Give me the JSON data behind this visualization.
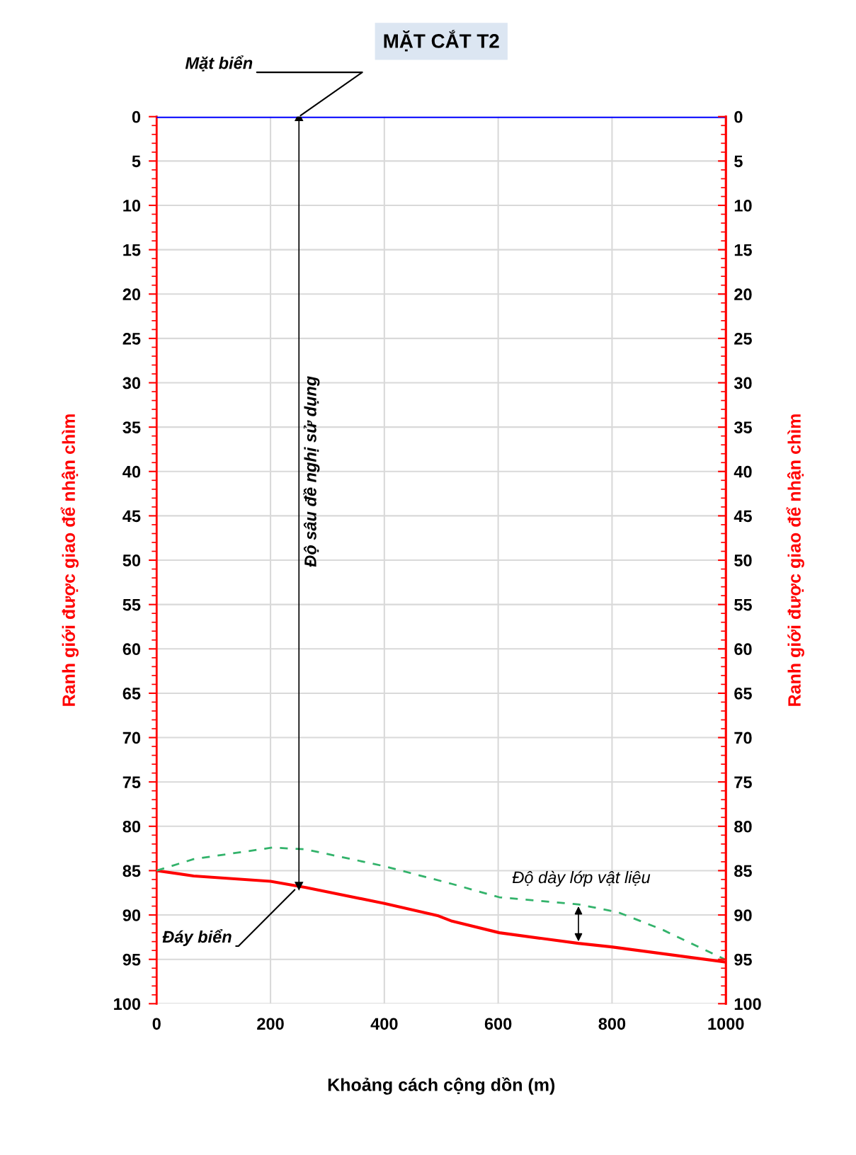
{
  "chart_data": {
    "type": "line",
    "title": "MẶT CẮT T2",
    "xlabel": "Khoảng cách cộng dồn (m)",
    "ylabel": "Ranh giới được giao để nhận chìm",
    "y2label": "Ranh giới được giao để nhận chìm",
    "series": [
      {
        "color": "#0000ff",
        "x": [
          0,
          1000
        ],
        "values": [
          0,
          0
        ],
        "line_style": "solid"
      },
      {
        "color": "#ff0000",
        "x": [
          0,
          65,
          200,
          262,
          400,
          495,
          519,
          602,
          741,
          799,
          998
        ],
        "values": [
          85,
          85.6,
          86.2,
          86.9,
          88.7,
          90.1,
          90.7,
          92.0,
          93.2,
          93.6,
          95.3
        ],
        "line_style": "solid"
      },
      {
        "color": "#33b36b",
        "x": [
          0,
          65,
          203,
          262,
          400,
          519,
          602,
          741,
          811,
          890,
          998
        ],
        "values": [
          85,
          83.7,
          82.4,
          82.6,
          84.5,
          86.5,
          88.0,
          88.8,
          89.7,
          91.7,
          95.0
        ],
        "line_style": "dashed"
      }
    ],
    "xlim": [
      0,
      1000
    ],
    "xticks": [
      0,
      200,
      400,
      600,
      800,
      1000
    ],
    "ylim": [
      100,
      0
    ],
    "yticks": [
      0,
      5,
      10,
      15,
      20,
      25,
      30,
      35,
      40,
      45,
      50,
      55,
      60,
      65,
      70,
      75,
      80,
      85,
      90,
      95,
      100
    ],
    "y2lim": [
      100,
      0
    ],
    "y2ticks": [
      0,
      5,
      10,
      15,
      20,
      25,
      30,
      35,
      40,
      45,
      50,
      55,
      60,
      65,
      70,
      75,
      80,
      85,
      90,
      95,
      100
    ],
    "ref_lines": [
      {
        "axis": "x",
        "value": 250,
        "label": "Độ sâu đề nghị sử dụng",
        "color": "#000000"
      }
    ],
    "grid": true,
    "marker": "none",
    "annotations": [
      {
        "text": "Mặt biển",
        "x": 250,
        "y": 0
      },
      {
        "text": "Đáy biển",
        "x": 245,
        "y": 87
      },
      {
        "text": "Độ dày lớp vật liệu",
        "x": 741,
        "y": 93.2
      }
    ]
  }
}
